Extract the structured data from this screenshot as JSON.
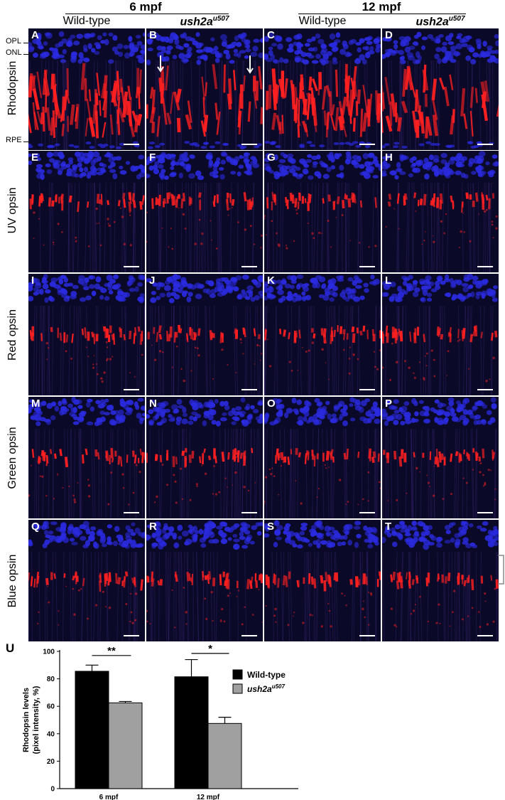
{
  "header": {
    "groups": [
      {
        "label": "6 mpf"
      },
      {
        "label": "12 mpf"
      }
    ],
    "genotypes": [
      {
        "text": "Wild-type",
        "sup": "",
        "italic": false
      },
      {
        "text": "ush2a",
        "sup": "u507",
        "italic": true
      },
      {
        "text": "Wild-type",
        "sup": "",
        "italic": false
      },
      {
        "text": "ush2a",
        "sup": "u507",
        "italic": true
      }
    ]
  },
  "layer_labels": [
    "OPL",
    "ONL",
    "RPE"
  ],
  "rows": [
    {
      "label": "Rhodopsin",
      "panels": [
        "A",
        "B",
        "C",
        "D"
      ]
    },
    {
      "label": "UV opsin",
      "panels": [
        "E",
        "F",
        "G",
        "H"
      ]
    },
    {
      "label": "Red opsin",
      "panels": [
        "I",
        "J",
        "K",
        "L"
      ]
    },
    {
      "label": "Green opsin",
      "panels": [
        "M",
        "N",
        "O",
        "P"
      ]
    },
    {
      "label": "Blue opsin",
      "panels": [
        "Q",
        "R",
        "S",
        "T"
      ]
    }
  ],
  "colors": {
    "nuclei": "#2a2ae0",
    "opsin": "#ff2020",
    "background": "#04040e"
  },
  "chart_panel": "U",
  "chart_data": {
    "type": "bar",
    "categories": [
      "6 mpf",
      "12 mpf"
    ],
    "series": [
      {
        "name": "Wild-type",
        "sup": "",
        "italic": false,
        "color": "#000000",
        "values": [
          85.5,
          81.5
        ],
        "errors": [
          4.5,
          12.5
        ]
      },
      {
        "name": "ush2a",
        "sup": "u507",
        "italic": true,
        "color": "#a0a0a0",
        "values": [
          62.5,
          47.5
        ],
        "errors": [
          1.0,
          4.5
        ]
      }
    ],
    "ylabel_line1": "Rhodopsin levels",
    "ylabel_line2": "(pixel intensity, %)",
    "ylim": [
      0,
      100
    ],
    "yticks": [
      0,
      20,
      40,
      60,
      80,
      100
    ],
    "significance": [
      {
        "category": "6 mpf",
        "label": "**"
      },
      {
        "category": "12 mpf",
        "label": "*"
      }
    ],
    "legend_position": "right"
  }
}
